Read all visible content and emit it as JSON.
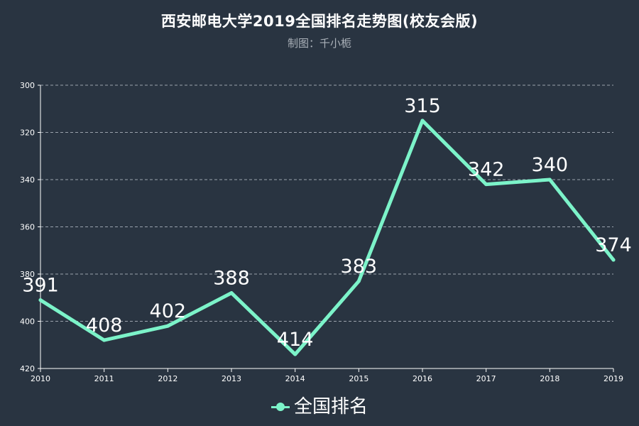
{
  "header": {
    "title": "西安邮电大学2019全国排名走势图(校友会版)",
    "subtitle": "制图：千小栀"
  },
  "colors": {
    "background": "#293441",
    "series": "#7cf3c9",
    "grid": "#9aa3ad",
    "axis": "#ffffff"
  },
  "chart_data": {
    "type": "line",
    "title": "西安邮电大学2019全国排名走势图(校友会版)",
    "subtitle": "制图：千小栀",
    "categories": [
      "2010",
      "2011",
      "2012",
      "2013",
      "2014",
      "2015",
      "2016",
      "2017",
      "2018",
      "2019"
    ],
    "series": [
      {
        "name": "全国排名",
        "values": [
          391,
          408,
          402,
          388,
          414,
          383,
          315,
          342,
          340,
          374
        ]
      }
    ],
    "xlabel": "",
    "ylabel": "",
    "ylim": [
      300,
      420
    ],
    "y_inverted": true,
    "yticks": [
      300,
      320,
      340,
      360,
      380,
      400,
      420
    ],
    "grid": true,
    "grid_style": "dashed",
    "legend_position": "bottom-center",
    "data_labels": true
  }
}
